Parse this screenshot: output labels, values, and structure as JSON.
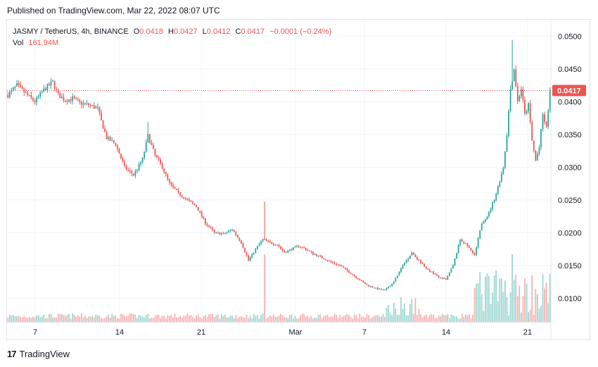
{
  "header": {
    "published": "Published on TradingView.com, Mar 22, 2022 08:07 UTC"
  },
  "legend": {
    "symbol": "JASMY / TetherUS, 4h, BINANCE",
    "o_label": "O",
    "o_value": "0.0418",
    "h_label": "H",
    "h_value": "0.0427",
    "l_label": "L",
    "l_value": "0.0412",
    "c_label": "C",
    "c_value": "0.0417",
    "change": "−0.0001 (−0.24%)",
    "vol_label": "Vol",
    "vol_value": "161.94M"
  },
  "footer": {
    "logo_text": "17",
    "brand": "TradingView"
  },
  "colors": {
    "up": "#26a69a",
    "down": "#ef5350",
    "grid": "#f0f3fa",
    "axis_text": "#131722"
  },
  "chart_data": {
    "type": "candlestick",
    "price_axis": {
      "min": 0.0065,
      "max": 0.0525,
      "ticks": [
        "0.0500",
        "0.0450",
        "0.0400",
        "0.0350",
        "0.0300",
        "0.0250",
        "0.0200",
        "0.0150",
        "0.0100"
      ]
    },
    "last_price": "0.0417",
    "x_ticks": [
      "7",
      "14",
      "21",
      "Mar",
      "7",
      "14",
      "21"
    ],
    "grid": true,
    "anchors": [
      [
        0,
        0.041
      ],
      [
        5,
        0.0425
      ],
      [
        10,
        0.0412
      ],
      [
        15,
        0.04
      ],
      [
        20,
        0.0418
      ],
      [
        25,
        0.043
      ],
      [
        28,
        0.041
      ],
      [
        32,
        0.0402
      ],
      [
        36,
        0.0405
      ],
      [
        40,
        0.0398
      ],
      [
        45,
        0.0395
      ],
      [
        50,
        0.039
      ],
      [
        52,
        0.037
      ],
      [
        55,
        0.0345
      ],
      [
        60,
        0.0335
      ],
      [
        65,
        0.03
      ],
      [
        70,
        0.0288
      ],
      [
        75,
        0.0312
      ],
      [
        78,
        0.0348
      ],
      [
        82,
        0.0318
      ],
      [
        86,
        0.03
      ],
      [
        90,
        0.0275
      ],
      [
        95,
        0.026
      ],
      [
        100,
        0.025
      ],
      [
        105,
        0.024
      ],
      [
        110,
        0.0215
      ],
      [
        115,
        0.02
      ],
      [
        120,
        0.0198
      ],
      [
        125,
        0.0205
      ],
      [
        130,
        0.0185
      ],
      [
        134,
        0.0158
      ],
      [
        138,
        0.0175
      ],
      [
        142,
        0.019
      ],
      [
        146,
        0.0185
      ],
      [
        150,
        0.0182
      ],
      [
        154,
        0.017
      ],
      [
        158,
        0.0175
      ],
      [
        162,
        0.018
      ],
      [
        166,
        0.0175
      ],
      [
        170,
        0.0168
      ],
      [
        175,
        0.0162
      ],
      [
        180,
        0.0155
      ],
      [
        185,
        0.015
      ],
      [
        190,
        0.014
      ],
      [
        195,
        0.013
      ],
      [
        200,
        0.012
      ],
      [
        205,
        0.0115
      ],
      [
        210,
        0.0112
      ],
      [
        215,
        0.0125
      ],
      [
        220,
        0.015
      ],
      [
        225,
        0.017
      ],
      [
        228,
        0.016
      ],
      [
        232,
        0.0148
      ],
      [
        236,
        0.014
      ],
      [
        240,
        0.0132
      ],
      [
        244,
        0.0128
      ],
      [
        248,
        0.015
      ],
      [
        252,
        0.019
      ],
      [
        256,
        0.018
      ],
      [
        260,
        0.0165
      ],
      [
        264,
        0.0215
      ],
      [
        268,
        0.023
      ],
      [
        272,
        0.026
      ],
      [
        276,
        0.03
      ],
      [
        278,
        0.035
      ],
      [
        280,
        0.042
      ],
      [
        282,
        0.045
      ],
      [
        284,
        0.04
      ],
      [
        286,
        0.042
      ],
      [
        288,
        0.038
      ],
      [
        290,
        0.0395
      ],
      [
        292,
        0.034
      ],
      [
        294,
        0.031
      ],
      [
        296,
        0.033
      ],
      [
        298,
        0.038
      ],
      [
        300,
        0.036
      ],
      [
        302,
        0.0417
      ]
    ]
  }
}
